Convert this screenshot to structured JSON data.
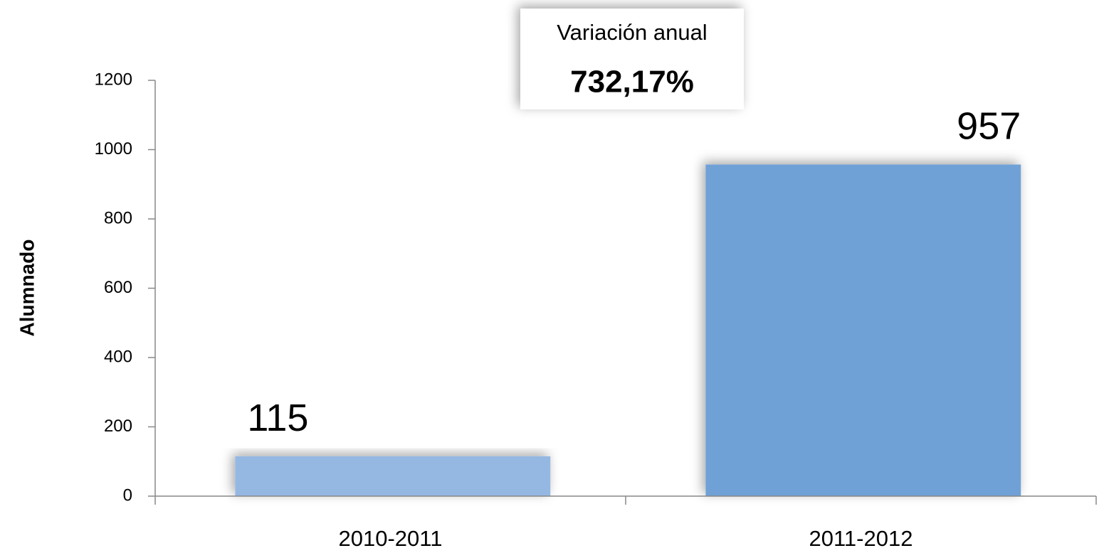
{
  "chart_data": {
    "type": "bar",
    "y_label": "Alumnado",
    "categories": [
      "2010-2011",
      "2011-2012"
    ],
    "values": [
      115,
      957
    ],
    "colors": [
      "#95b8e3",
      "#6fa1d6"
    ],
    "ylim": [
      0,
      1200
    ],
    "yticks": [
      0,
      200,
      400,
      600,
      800,
      1000,
      1200
    ],
    "annotation": [
      "Variación anual",
      "732,17%"
    ]
  }
}
